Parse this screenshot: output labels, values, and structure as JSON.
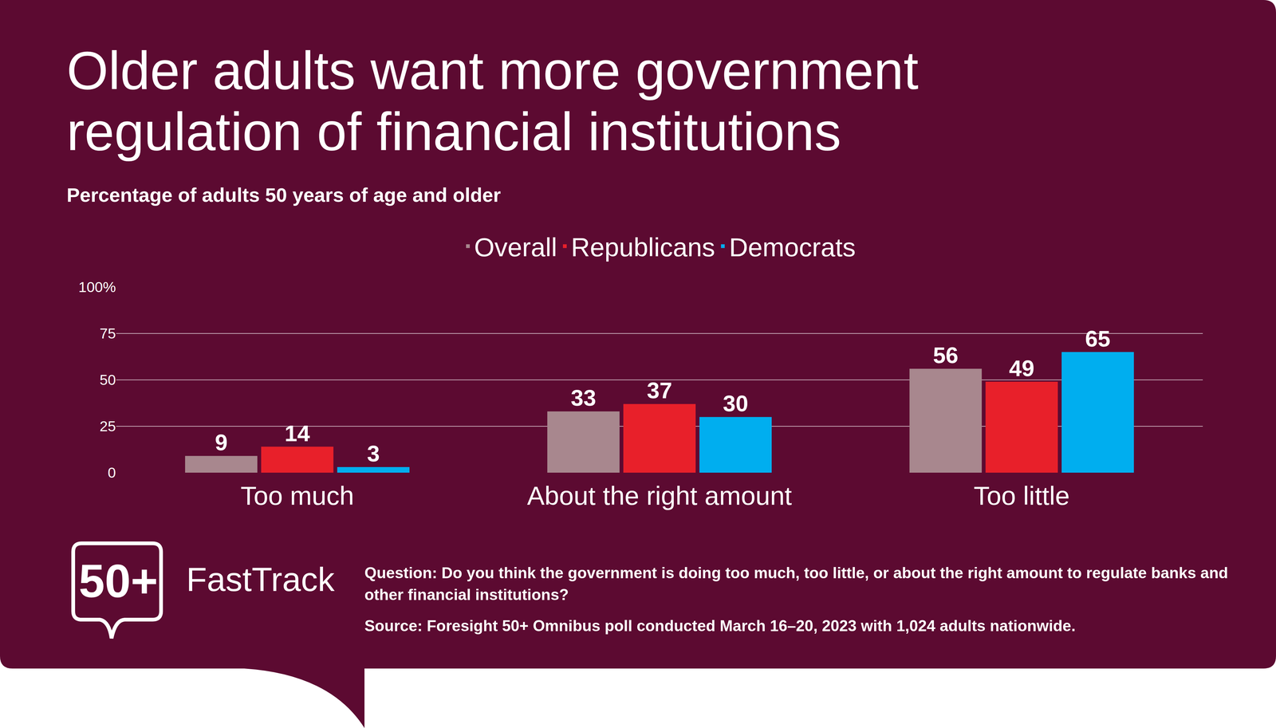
{
  "chart_data": {
    "type": "bar",
    "title": "Older adults want more government regulation of financial institutions",
    "subtitle": "Percentage of adults 50 years of age and older",
    "categories": [
      "Too much",
      "About the right amount",
      "Too little"
    ],
    "series": [
      {
        "name": "Overall",
        "color": "#a8878e",
        "values": [
          9,
          33,
          56
        ]
      },
      {
        "name": "Republicans",
        "color": "#e8202a",
        "values": [
          14,
          37,
          49
        ]
      },
      {
        "name": "Democrats",
        "color": "#00aeef",
        "values": [
          3,
          30,
          65
        ]
      }
    ],
    "ylim": [
      0,
      100
    ],
    "yticks": [
      0,
      25,
      50,
      75,
      {
        "value": 100,
        "label": "100%"
      }
    ],
    "grid": true,
    "data_labels": true,
    "legend": "top",
    "annotations": [
      "50+",
      "FastTrack",
      "Question: Do you think the government is doing too much, too little, or about the right amount to regulate banks and other financial institutions?",
      "Source: Foresight 50+ Omnibus poll conducted March 16–20, 2023 with 1,024 adults nationwide."
    ]
  }
}
